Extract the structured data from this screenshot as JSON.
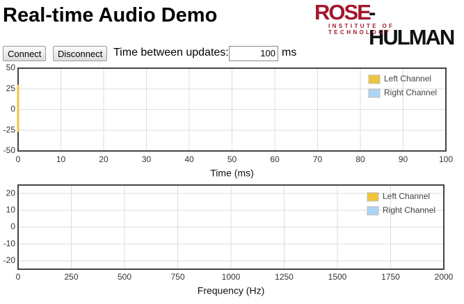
{
  "header": {
    "title": "Real-time Audio Demo",
    "logo_main": "ROSE",
    "logo_rest": "-HULMAN",
    "logo_sub": "INSTITUTE OF TECHNOLOGY"
  },
  "controls": {
    "connect": "Connect",
    "disconnect": "Disconnect",
    "interval_label": "Time between updates:",
    "interval_value": "100",
    "interval_unit": "ms"
  },
  "chart_data": [
    {
      "type": "line",
      "xlabel": "Time (ms)",
      "xlim": [
        0,
        100
      ],
      "xticks": [
        0,
        10,
        20,
        30,
        40,
        50,
        60,
        70,
        80,
        90,
        100
      ],
      "ylim": [
        -50,
        50
      ],
      "yticks": [
        -50,
        -25,
        0,
        25,
        50
      ],
      "grid": true,
      "legend": "top-right",
      "series": [
        {
          "name": "Left Channel",
          "color": "#f0c43c",
          "x": [
            0,
            0
          ],
          "values": [
            30,
            -27
          ]
        },
        {
          "name": "Right Channel",
          "color": "#acd4f4",
          "x": [],
          "values": []
        }
      ]
    },
    {
      "type": "line",
      "xlabel": "Frequency (Hz)",
      "xlim": [
        0,
        2000
      ],
      "xticks": [
        0,
        250,
        500,
        750,
        1000,
        1250,
        1500,
        1750,
        2000
      ],
      "ylim": [
        -25,
        25
      ],
      "yticks": [
        -20,
        -10,
        0,
        10,
        20
      ],
      "grid": true,
      "legend": "top-right",
      "series": [
        {
          "name": "Left Channel",
          "color": "#f0c43c",
          "x": [],
          "values": []
        },
        {
          "name": "Right Channel",
          "color": "#acd4f4",
          "x": [],
          "values": []
        }
      ]
    }
  ]
}
